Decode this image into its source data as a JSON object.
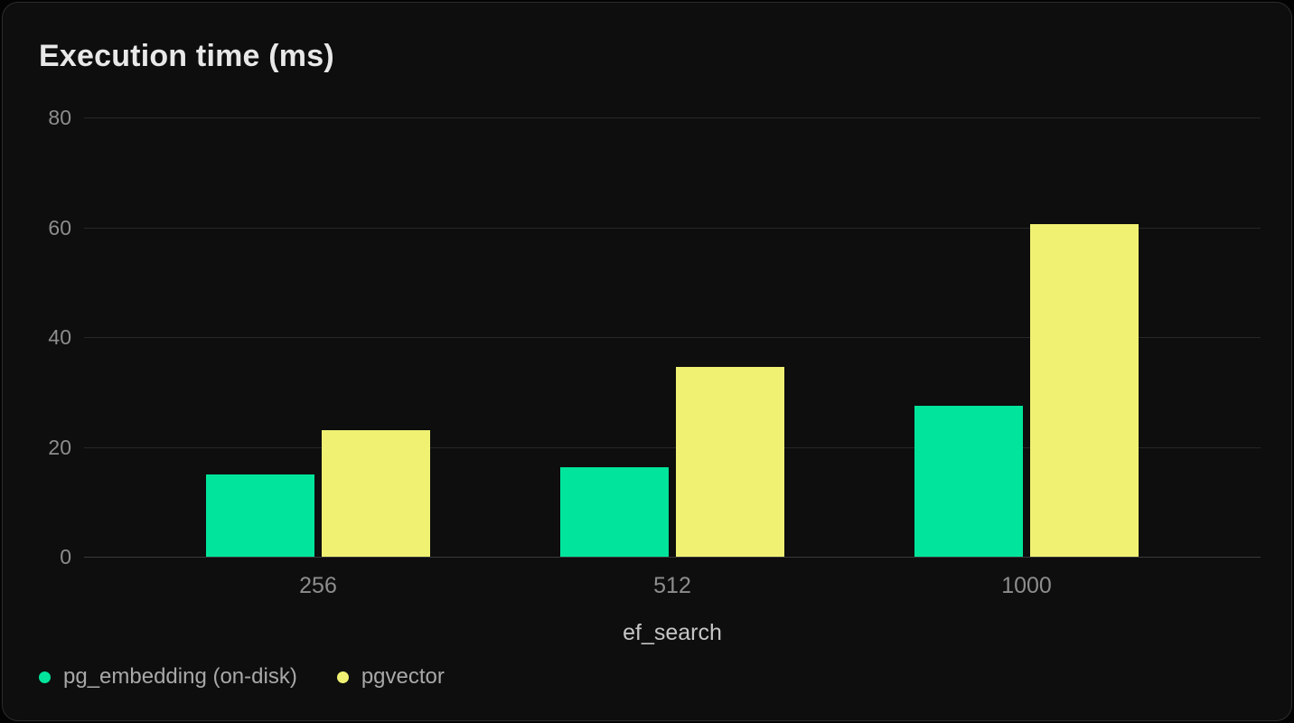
{
  "chart_data": {
    "type": "bar",
    "title": "Execution time (ms)",
    "xlabel": "ef_search",
    "ylabel": "",
    "categories": [
      "256",
      "512",
      "1000"
    ],
    "series": [
      {
        "name": "pg_embedding (on-disk)",
        "color": "#00e59b",
        "values": [
          15,
          16.3,
          27.5
        ]
      },
      {
        "name": "pgvector",
        "color": "#f0f173",
        "values": [
          23,
          34.5,
          60.5
        ]
      }
    ],
    "ylim": [
      0,
      80
    ],
    "yticks": [
      0,
      20,
      40,
      60,
      80
    ],
    "grid": true,
    "grid_lines": "horizontal",
    "legend_position": "bottom-left"
  },
  "colors": {
    "page_background": "#030303",
    "card_background": "#0d0e0d",
    "card_border": "#2c2c2c",
    "gridline": "#272727",
    "zero_axis_line": "#3a3a3a",
    "title_text": "#e8e8e8",
    "tick_text": "#8d8d8d",
    "axis_title_text": "#c6c6c6",
    "legend_text": "#a8a8a8"
  }
}
